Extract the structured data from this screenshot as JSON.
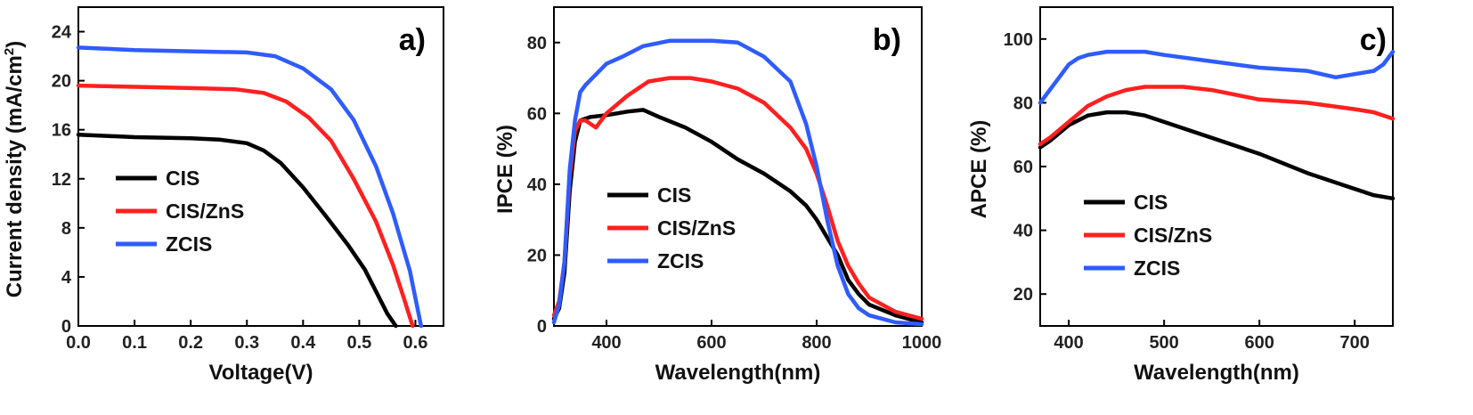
{
  "colors": {
    "CIS": "#000000",
    "CIS/ZnS": "#ff2020",
    "ZCIS": "#2f5cff"
  },
  "chart_data": [
    {
      "type": "line",
      "panel_label": "a)",
      "xlabel": "Voltage(V)",
      "ylabel": "Current density (mA/cm",
      "ylabel_sup": "2",
      "ylabel_end": ")",
      "xlim": [
        0.0,
        0.65
      ],
      "ylim": [
        0,
        26
      ],
      "xticks": [
        0.0,
        0.1,
        0.2,
        0.3,
        0.4,
        0.5,
        0.6
      ],
      "xtick_labels": [
        "0.0",
        "0.1",
        "0.2",
        "0.3",
        "0.4",
        "0.5",
        "0.6"
      ],
      "yticks": [
        0,
        4,
        8,
        12,
        16,
        20,
        24
      ],
      "ytick_labels": [
        "0",
        "4",
        "8",
        "12",
        "16",
        "20",
        "24"
      ],
      "legend_position": "lower-left",
      "series": [
        {
          "name": "CIS",
          "x": [
            0.0,
            0.1,
            0.2,
            0.25,
            0.3,
            0.33,
            0.36,
            0.4,
            0.44,
            0.48,
            0.51,
            0.53,
            0.55,
            0.565
          ],
          "y": [
            15.6,
            15.4,
            15.3,
            15.2,
            14.9,
            14.3,
            13.3,
            11.3,
            9.0,
            6.6,
            4.6,
            2.8,
            1.0,
            0.0
          ]
        },
        {
          "name": "CIS/ZnS",
          "x": [
            0.0,
            0.1,
            0.2,
            0.28,
            0.33,
            0.37,
            0.41,
            0.45,
            0.49,
            0.53,
            0.56,
            0.58,
            0.595
          ],
          "y": [
            19.6,
            19.5,
            19.4,
            19.3,
            19.0,
            18.3,
            17.0,
            15.1,
            12.0,
            8.5,
            5.0,
            2.2,
            0.0
          ]
        },
        {
          "name": "ZCIS",
          "x": [
            0.0,
            0.1,
            0.2,
            0.3,
            0.35,
            0.4,
            0.45,
            0.49,
            0.53,
            0.56,
            0.59,
            0.61
          ],
          "y": [
            22.7,
            22.5,
            22.4,
            22.3,
            22.0,
            21.0,
            19.3,
            16.8,
            13.0,
            9.2,
            4.5,
            0.0
          ]
        }
      ]
    },
    {
      "type": "line",
      "panel_label": "b)",
      "xlabel": "Wavelength(nm)",
      "ylabel": "IPCE (%)",
      "xlim": [
        300,
        1000
      ],
      "ylim": [
        0,
        90
      ],
      "xticks": [
        400,
        600,
        800,
        1000
      ],
      "xtick_labels": [
        "400",
        "600",
        "800",
        "1000"
      ],
      "yticks": [
        0,
        20,
        40,
        60,
        80
      ],
      "ytick_labels": [
        "0",
        "20",
        "40",
        "60",
        "80"
      ],
      "legend_position": "center-left",
      "series": [
        {
          "name": "CIS",
          "x": [
            300,
            310,
            320,
            330,
            340,
            350,
            370,
            400,
            440,
            470,
            500,
            550,
            600,
            650,
            700,
            750,
            780,
            800,
            820,
            840,
            860,
            880,
            900,
            950,
            1000
          ],
          "y": [
            2,
            5,
            15,
            38,
            52,
            58,
            59,
            59.5,
            60.5,
            61,
            59,
            56,
            52,
            47,
            43,
            38,
            34,
            30,
            25,
            20,
            13,
            9,
            6,
            3,
            1
          ]
        },
        {
          "name": "CIS/ZnS",
          "x": [
            300,
            310,
            320,
            330,
            340,
            350,
            360,
            370,
            380,
            400,
            440,
            480,
            520,
            560,
            600,
            650,
            700,
            750,
            780,
            800,
            820,
            840,
            860,
            880,
            900,
            950,
            1000
          ],
          "y": [
            3,
            7,
            18,
            42,
            55,
            58,
            58,
            57,
            56,
            60,
            65,
            69,
            70,
            70,
            69,
            67,
            63,
            56,
            50,
            43,
            34,
            24,
            17,
            12,
            8,
            4,
            2
          ]
        },
        {
          "name": "ZCIS",
          "x": [
            300,
            310,
            320,
            330,
            340,
            350,
            360,
            380,
            400,
            430,
            470,
            520,
            560,
            600,
            650,
            700,
            750,
            780,
            800,
            820,
            840,
            860,
            880,
            900,
            950,
            1000
          ],
          "y": [
            1,
            6,
            18,
            44,
            58,
            66,
            68,
            71,
            74,
            76,
            79,
            80.5,
            80.5,
            80.5,
            80,
            76,
            69,
            57,
            45,
            30,
            17,
            9,
            5,
            3,
            1,
            0.5
          ]
        }
      ]
    },
    {
      "type": "line",
      "panel_label": "c)",
      "xlabel": "Wavelength(nm)",
      "ylabel": "APCE (%)",
      "xlim": [
        370,
        740
      ],
      "ylim": [
        10,
        110
      ],
      "xticks": [
        400,
        500,
        600,
        700
      ],
      "xtick_labels": [
        "400",
        "500",
        "600",
        "700"
      ],
      "yticks": [
        20,
        40,
        60,
        80,
        100
      ],
      "ytick_labels": [
        "20",
        "40",
        "60",
        "80",
        "100"
      ],
      "legend_position": "lower-left",
      "series": [
        {
          "name": "CIS",
          "x": [
            370,
            380,
            400,
            420,
            440,
            460,
            480,
            500,
            550,
            600,
            650,
            700,
            720,
            740
          ],
          "y": [
            66,
            68,
            73,
            76,
            77,
            77,
            76,
            74,
            69,
            64,
            58,
            53,
            51,
            50
          ]
        },
        {
          "name": "CIS/ZnS",
          "x": [
            370,
            380,
            400,
            420,
            440,
            460,
            480,
            500,
            520,
            550,
            600,
            650,
            700,
            720,
            740
          ],
          "y": [
            67,
            69,
            74,
            79,
            82,
            84,
            85,
            85,
            85,
            84,
            81,
            80,
            78,
            77,
            75
          ]
        },
        {
          "name": "ZCIS",
          "x": [
            370,
            380,
            390,
            400,
            410,
            420,
            440,
            460,
            480,
            500,
            550,
            600,
            650,
            680,
            700,
            720,
            730,
            740
          ],
          "y": [
            80,
            84,
            88,
            92,
            94,
            95,
            96,
            96,
            96,
            95,
            93,
            91,
            90,
            88,
            89,
            90,
            92,
            96
          ]
        }
      ]
    }
  ]
}
